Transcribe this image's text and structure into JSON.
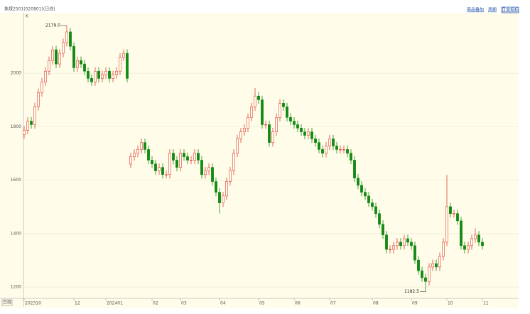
{
  "toolbar": {
    "title": "焦煤2501(020801)(日线)",
    "buttons": [
      "商品叠加",
      "周期",
      "日常指标"
    ]
  },
  "chart_data": {
    "type": "candlestick",
    "y_label": "K",
    "x_label": "日线",
    "up_color": "#e0403a",
    "down_color": "#138a13",
    "grid": true,
    "ylim": [
      1179,
      2216
    ],
    "yticks": [
      1200,
      1400,
      1600,
      1800,
      2000
    ],
    "xlim": [
      -0.2,
      138.8
    ],
    "xticks": [
      {
        "value": 0,
        "label": "202310"
      },
      {
        "value": 14,
        "label": "12"
      },
      {
        "value": 23,
        "label": "202401"
      },
      {
        "value": 36,
        "label": "02"
      },
      {
        "value": 44,
        "label": "03"
      },
      {
        "value": 55,
        "label": "04"
      },
      {
        "value": 66,
        "label": "05"
      },
      {
        "value": 76,
        "label": "06"
      },
      {
        "value": 86,
        "label": "07"
      },
      {
        "value": 98,
        "label": "08"
      },
      {
        "value": 109,
        "label": "09"
      },
      {
        "value": 119,
        "label": "10"
      },
      {
        "value": 129,
        "label": "11"
      }
    ],
    "open": [
      1770,
      1787,
      1821,
      1808,
      1875,
      1928,
      1968,
      2008,
      2048,
      2088,
      2035,
      2075,
      2115,
      2155,
      2101,
      2021,
      2048,
      2035,
      2008,
      1981,
      1968,
      2008,
      1981,
      1995,
      2008,
      1981,
      1995,
      2008,
      2061,
      2075,
      1660,
      1688,
      1701,
      1715,
      1741,
      1715,
      1675,
      1661,
      1635,
      1648,
      1621,
      1621,
      1701,
      1675,
      1648,
      1701,
      1688,
      1675,
      1675,
      1701,
      1675,
      1621,
      1635,
      1648,
      1595,
      1555,
      1515,
      1541,
      1595,
      1635,
      1701,
      1755,
      1781,
      1795,
      1835,
      1875,
      1915,
      1901,
      1808,
      1808,
      1741,
      1781,
      1835,
      1888,
      1875,
      1835,
      1821,
      1808,
      1795,
      1781,
      1768,
      1781,
      1755,
      1741,
      1715,
      1701,
      1728,
      1755,
      1728,
      1715,
      1715,
      1715,
      1701,
      1675,
      1608,
      1581,
      1555,
      1541,
      1515,
      1501,
      1475,
      1435,
      1395,
      1341,
      1341,
      1355,
      1368,
      1355,
      1381,
      1368,
      1355,
      1301,
      1261,
      1235,
      1221,
      1275,
      1288,
      1275,
      1315,
      1368,
      1501,
      1475,
      1475,
      1448,
      1355,
      1341,
      1355,
      1381,
      1395,
      1368
    ],
    "high": [
      1802,
      1836,
      1836,
      1890,
      1943,
      1983,
      2023,
      2063,
      2103,
      2103,
      2090,
      2130,
      2179,
      2170,
      2116,
      2063,
      2063,
      2050,
      2023,
      1996,
      2023,
      2023,
      2010,
      2023,
      2023,
      2010,
      2023,
      2076,
      2090,
      2090,
      1703,
      1716,
      1730,
      1756,
      1756,
      1730,
      1690,
      1676,
      1663,
      1663,
      1636,
      1716,
      1716,
      1690,
      1716,
      1716,
      1703,
      1690,
      1716,
      1716,
      1690,
      1650,
      1663,
      1663,
      1610,
      1570,
      1556,
      1610,
      1650,
      1716,
      1770,
      1796,
      1810,
      1850,
      1890,
      1945,
      1930,
      1916,
      1823,
      1823,
      1796,
      1850,
      1903,
      1903,
      1890,
      1850,
      1836,
      1823,
      1810,
      1796,
      1796,
      1796,
      1770,
      1756,
      1730,
      1743,
      1770,
      1770,
      1743,
      1730,
      1730,
      1730,
      1716,
      1690,
      1623,
      1596,
      1570,
      1556,
      1530,
      1516,
      1490,
      1450,
      1410,
      1356,
      1370,
      1383,
      1383,
      1396,
      1396,
      1383,
      1370,
      1316,
      1276,
      1250,
      1290,
      1303,
      1303,
      1330,
      1383,
      1620,
      1516,
      1490,
      1490,
      1463,
      1370,
      1370,
      1396,
      1420,
      1410,
      1383
    ],
    "low": [
      1755,
      1772,
      1793,
      1793,
      1860,
      1913,
      1953,
      1993,
      2033,
      2020,
      2020,
      2060,
      2100,
      2086,
      2006,
      2006,
      2020,
      1993,
      1966,
      1953,
      1953,
      1966,
      1966,
      1980,
      1966,
      1966,
      1980,
      1993,
      2046,
      1966,
      1645,
      1673,
      1686,
      1700,
      1700,
      1660,
      1646,
      1620,
      1620,
      1606,
      1606,
      1606,
      1660,
      1633,
      1633,
      1673,
      1660,
      1660,
      1660,
      1660,
      1606,
      1606,
      1620,
      1580,
      1540,
      1475,
      1500,
      1526,
      1580,
      1620,
      1686,
      1740,
      1766,
      1780,
      1820,
      1860,
      1886,
      1793,
      1793,
      1726,
      1726,
      1766,
      1820,
      1860,
      1820,
      1806,
      1793,
      1780,
      1766,
      1753,
      1753,
      1740,
      1726,
      1700,
      1686,
      1686,
      1713,
      1713,
      1700,
      1700,
      1700,
      1686,
      1660,
      1593,
      1566,
      1540,
      1526,
      1500,
      1486,
      1460,
      1420,
      1380,
      1326,
      1326,
      1326,
      1340,
      1340,
      1340,
      1353,
      1340,
      1286,
      1246,
      1220,
      1182.5,
      1206,
      1260,
      1260,
      1260,
      1300,
      1353,
      1460,
      1460,
      1433,
      1340,
      1326,
      1326,
      1340,
      1366,
      1353,
      1340
    ],
    "close": [
      1787,
      1821,
      1808,
      1875,
      1928,
      1968,
      2008,
      2048,
      2088,
      2035,
      2075,
      2115,
      2155,
      2101,
      2021,
      2048,
      2035,
      2008,
      1981,
      1968,
      2008,
      1981,
      1995,
      2008,
      1981,
      1995,
      2008,
      2061,
      2075,
      1981,
      1688,
      1701,
      1715,
      1741,
      1715,
      1675,
      1661,
      1635,
      1648,
      1621,
      1621,
      1701,
      1675,
      1648,
      1701,
      1688,
      1675,
      1675,
      1701,
      1675,
      1621,
      1635,
      1648,
      1595,
      1555,
      1515,
      1541,
      1595,
      1635,
      1701,
      1755,
      1781,
      1795,
      1835,
      1875,
      1915,
      1901,
      1808,
      1808,
      1741,
      1781,
      1835,
      1888,
      1875,
      1835,
      1821,
      1808,
      1795,
      1781,
      1768,
      1781,
      1755,
      1741,
      1715,
      1701,
      1728,
      1755,
      1728,
      1715,
      1715,
      1715,
      1701,
      1675,
      1608,
      1581,
      1555,
      1541,
      1515,
      1501,
      1475,
      1435,
      1395,
      1341,
      1341,
      1355,
      1368,
      1355,
      1381,
      1368,
      1355,
      1301,
      1261,
      1235,
      1221,
      1275,
      1288,
      1275,
      1315,
      1368,
      1501,
      1475,
      1475,
      1448,
      1355,
      1341,
      1355,
      1381,
      1395,
      1368,
      1355
    ],
    "annotations": [
      {
        "value": 2179,
        "label": "2179.0",
        "of": "high"
      },
      {
        "value": 1182.5,
        "label": "1182.5",
        "of": "low"
      }
    ]
  }
}
